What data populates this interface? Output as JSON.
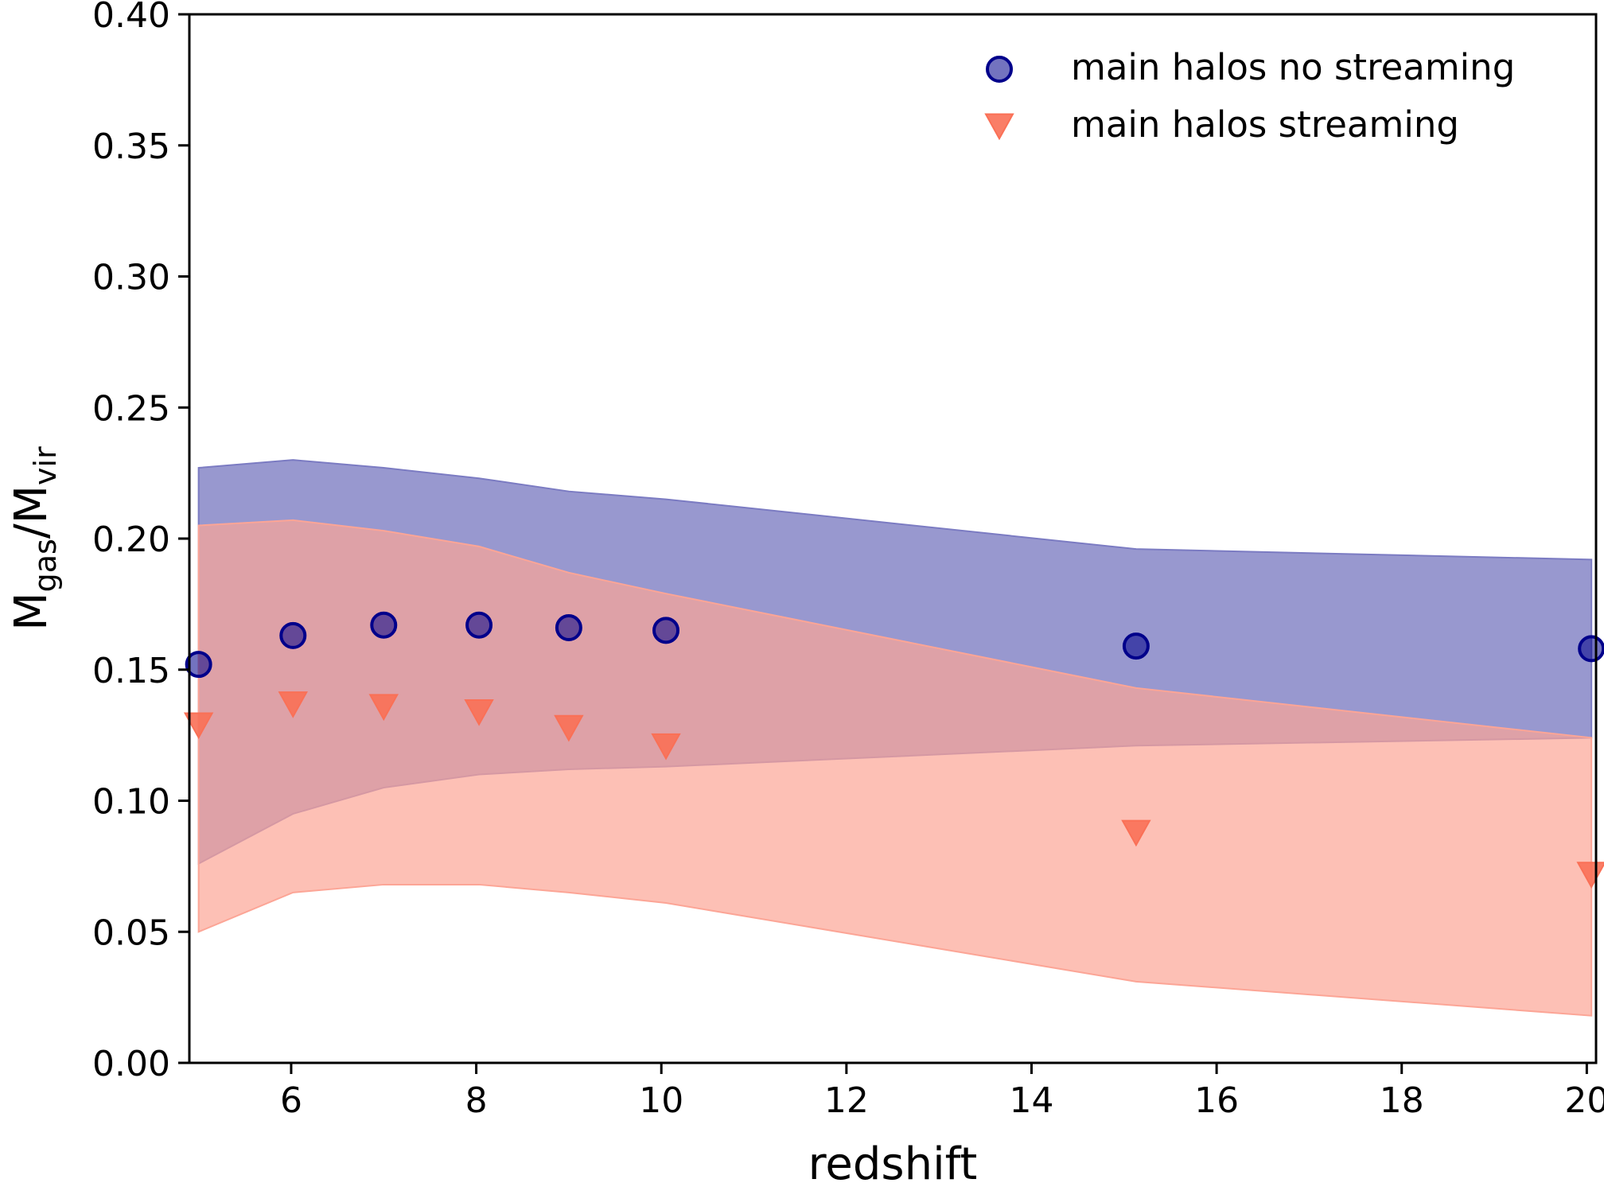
{
  "chart_data": {
    "type": "scatter",
    "title": "",
    "xlabel": "redshift",
    "ylabel": {
      "base1": "M",
      "sub1": "gas",
      "sep": "/",
      "base2": "M",
      "sub2": "vir"
    },
    "xlim": [
      4.9,
      20.1
    ],
    "ylim": [
      0.0,
      0.4
    ],
    "xticks": [
      6,
      8,
      10,
      12,
      14,
      16,
      18,
      20
    ],
    "xtick_labels": [
      "6",
      "8",
      "10",
      "12",
      "14",
      "16",
      "18",
      "20"
    ],
    "yticks": [
      0.0,
      0.05,
      0.1,
      0.15,
      0.2,
      0.25,
      0.3,
      0.35,
      0.4
    ],
    "ytick_labels": [
      "0.00",
      "0.05",
      "0.10",
      "0.15",
      "0.20",
      "0.25",
      "0.30",
      "0.35",
      "0.40"
    ],
    "grid": false,
    "legend_position": "top-right",
    "series": [
      {
        "name": "main halos no streaming",
        "marker": "circle",
        "color": "#00008b",
        "x": [
          5.0,
          6.02,
          7.0,
          8.03,
          9.0,
          10.05,
          15.13,
          20.05
        ],
        "y": [
          0.152,
          0.163,
          0.167,
          0.167,
          0.166,
          0.165,
          0.159,
          0.158
        ],
        "band": {
          "color": "#7b7bc2",
          "x": [
            5.0,
            6.02,
            7.0,
            8.03,
            9.0,
            10.05,
            15.13,
            20.05
          ],
          "upper": [
            0.227,
            0.23,
            0.227,
            0.223,
            0.218,
            0.215,
            0.196,
            0.192
          ],
          "lower": [
            0.076,
            0.095,
            0.105,
            0.11,
            0.112,
            0.113,
            0.121,
            0.124
          ]
        }
      },
      {
        "name": "main halos streaming",
        "marker": "triangle-down",
        "color": "#fa7056",
        "x": [
          5.0,
          6.02,
          7.0,
          8.03,
          9.0,
          10.05,
          15.13,
          20.05
        ],
        "y": [
          0.129,
          0.137,
          0.136,
          0.134,
          0.128,
          0.121,
          0.088,
          0.072
        ],
        "band": {
          "color": "#fca596",
          "x": [
            5.0,
            6.02,
            7.0,
            8.03,
            9.0,
            10.05,
            15.13,
            20.05
          ],
          "upper": [
            0.205,
            0.207,
            0.203,
            0.197,
            0.187,
            0.179,
            0.143,
            0.124
          ],
          "lower": [
            0.05,
            0.065,
            0.068,
            0.068,
            0.065,
            0.061,
            0.031,
            0.018
          ]
        }
      }
    ]
  }
}
